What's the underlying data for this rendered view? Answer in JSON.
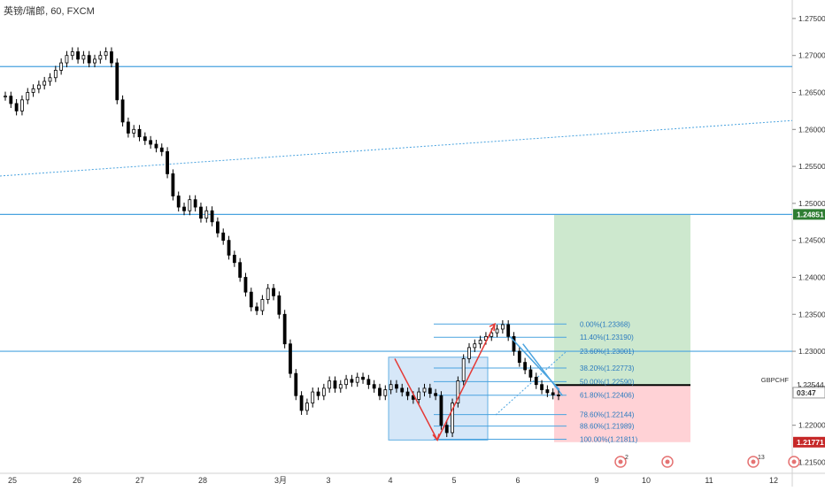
{
  "header": {
    "symbol": "英镑/瑞郎",
    "interval": "60",
    "exchange": "FXCM"
  },
  "colors": {
    "up_candle": "#000000",
    "down_candle": "#000000",
    "hline": "#4aa3df",
    "trend": "#4aa3df",
    "fib": "#4aa3df",
    "fib_label": "#2b7bbf",
    "pattern_arrow": "#e53935",
    "pattern_box": "#cfe3f7",
    "target_zone": "#c8e6c9",
    "stop_zone": "#ffcdd2",
    "price_tag_green": "#2e7d32",
    "price_tag_red": "#c62828",
    "price_tag_dark": "#212121",
    "event_icon": "#e57373"
  },
  "chart_data": {
    "type": "candlestick",
    "symbol": "GBPCHF",
    "y_axis": {
      "ylim": [
        1.2135,
        1.2775
      ],
      "ticks": [
        "1.27500",
        "1.27000",
        "1.26500",
        "1.26000",
        "1.25500",
        "1.25000",
        "1.24500",
        "1.24000",
        "1.23500",
        "1.23000",
        "1.22500",
        "1.22000",
        "1.21500"
      ]
    },
    "x_axis": {
      "ticks": [
        "25",
        "26",
        "27",
        "28",
        "3月",
        "3",
        "4",
        "5",
        "6",
        "9",
        "10",
        "11",
        "12"
      ]
    },
    "ohlc_close_approx": [
      1.2645,
      1.2635,
      1.2625,
      1.264,
      1.265,
      1.2655,
      1.266,
      1.2665,
      1.267,
      1.268,
      1.269,
      1.27,
      1.2705,
      1.2695,
      1.27,
      1.269,
      1.2695,
      1.27,
      1.2705,
      1.269,
      1.264,
      1.261,
      1.2595,
      1.26,
      1.259,
      1.2585,
      1.258,
      1.2575,
      1.257,
      1.254,
      1.251,
      1.2495,
      1.249,
      1.2505,
      1.2495,
      1.248,
      1.249,
      1.2475,
      1.246,
      1.245,
      1.243,
      1.242,
      1.24,
      1.238,
      1.236,
      1.2355,
      1.237,
      1.2385,
      1.2375,
      1.235,
      1.231,
      1.227,
      1.224,
      1.222,
      1.223,
      1.2245,
      1.224,
      1.225,
      1.226,
      1.225,
      1.2255,
      1.2262,
      1.2258,
      1.2265,
      1.2262,
      1.2255,
      1.225,
      1.224,
      1.2248,
      1.2255,
      1.225,
      1.2245,
      1.224,
      1.2235,
      1.2245,
      1.225,
      1.2243,
      1.224,
      1.22,
      1.219,
      1.223,
      1.226,
      1.229,
      1.2305,
      1.231,
      1.2315,
      1.232,
      1.2325,
      1.233,
      1.2336,
      1.232,
      1.23,
      1.2285,
      1.2275,
      1.2265,
      1.2255,
      1.2248,
      1.2244,
      1.2241,
      1.224
    ],
    "horizontal_lines": [
      1.2685,
      1.24851,
      1.23
    ],
    "trendlines": [
      {
        "from": [
          0,
          1.2537
        ],
        "to": [
          1,
          1.2612
        ],
        "style": "dotted"
      },
      {
        "from": [
          0.66,
          1.231
        ],
        "to": [
          0.71,
          1.224
        ],
        "style": "solid"
      }
    ],
    "fibonacci": [
      {
        "label": "0.00%(1.23368)",
        "value": 1.23368
      },
      {
        "label": "11.40%(1.23190)",
        "value": 1.2319
      },
      {
        "label": "23.60%(1.23001)",
        "value": 1.23001
      },
      {
        "label": "38.20%(1.22773)",
        "value": 1.22773
      },
      {
        "label": "50.00%(1.22590)",
        "value": 1.2259
      },
      {
        "label": "61.80%(1.22406)",
        "value": 1.22406
      },
      {
        "label": "78.60%(1.22144)",
        "value": 1.22144
      },
      {
        "label": "88.60%(1.21989)",
        "value": 1.21989
      },
      {
        "label": "100.00%(1.21811)",
        "value": 1.21811
      }
    ],
    "position": {
      "entry": 1.22544,
      "target": 1.24851,
      "stop": 1.21771
    },
    "price_tags": [
      {
        "label": "1.24851",
        "value": 1.24851,
        "kind": "green"
      },
      {
        "label": "1.22544",
        "value": 1.22544,
        "kind": "plain"
      },
      {
        "label": "03:47",
        "value": 1.2244,
        "kind": "dark"
      },
      {
        "label": "1.21771",
        "value": 1.21771,
        "kind": "red"
      }
    ],
    "symbol_label": "GBPCHF",
    "events": [
      {
        "x_label": "9",
        "badge": "2"
      },
      {
        "x_label": "10",
        "badge": ""
      },
      {
        "x_label": "12",
        "badge": "13"
      },
      {
        "x_label": "12",
        "badge": ""
      }
    ]
  }
}
